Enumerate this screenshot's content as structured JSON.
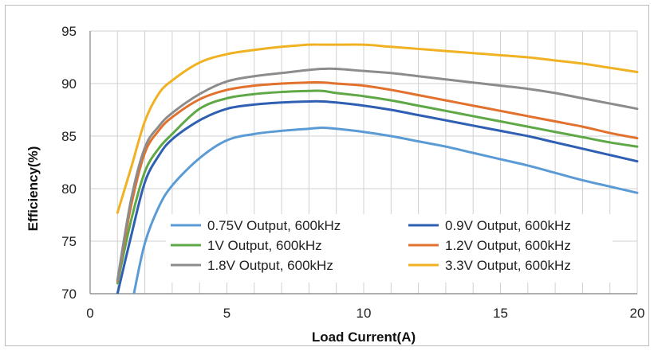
{
  "chart_data": {
    "type": "line",
    "title": "",
    "xlabel": "Load Current(A)",
    "ylabel": "Efficiency(%)",
    "xlim": [
      0,
      20
    ],
    "ylim": [
      70,
      95
    ],
    "x_ticks": [
      0,
      5,
      10,
      15,
      20
    ],
    "y_ticks": [
      70,
      75,
      80,
      85,
      90,
      95
    ],
    "grid": true,
    "legend_position": "inside lower-center",
    "series": [
      {
        "name": "0.75V Output, 600kHz",
        "color": "#5B9BD5",
        "x": [
          1.6,
          2.0,
          2.5,
          3.0,
          4.0,
          5.0,
          6.0,
          7.0,
          8.0,
          8.5,
          9.0,
          10.0,
          11.0,
          12.0,
          13.0,
          14.0,
          15.0,
          16.0,
          17.0,
          18.0,
          19.0,
          20.0
        ],
        "y": [
          70.0,
          74.8,
          78.2,
          80.3,
          82.9,
          84.6,
          85.2,
          85.5,
          85.7,
          85.8,
          85.7,
          85.4,
          85.0,
          84.5,
          84.0,
          83.4,
          82.8,
          82.2,
          81.5,
          80.8,
          80.2,
          79.6
        ]
      },
      {
        "name": "0.9V Output, 600kHz",
        "color": "#2E5FB2",
        "x": [
          1.0,
          1.5,
          2.0,
          2.5,
          3.0,
          4.0,
          5.0,
          6.0,
          7.0,
          8.0,
          8.5,
          9.0,
          10.0,
          11.0,
          12.0,
          13.0,
          14.0,
          15.0,
          16.0,
          17.0,
          18.0,
          19.0,
          20.0
        ],
        "y": [
          70.0,
          75.5,
          80.6,
          83.1,
          84.7,
          86.5,
          87.6,
          88.0,
          88.2,
          88.3,
          88.3,
          88.2,
          87.9,
          87.5,
          87.0,
          86.5,
          86.0,
          85.5,
          85.0,
          84.4,
          83.8,
          83.2,
          82.6
        ]
      },
      {
        "name": "1V Output, 600kHz",
        "color": "#5FA847",
        "x": [
          1.0,
          1.5,
          2.0,
          2.5,
          3.0,
          4.0,
          5.0,
          6.0,
          7.0,
          8.0,
          8.5,
          9.0,
          10.0,
          11.0,
          12.0,
          13.0,
          14.0,
          15.0,
          16.0,
          17.0,
          18.0,
          19.0,
          20.0
        ],
        "y": [
          71.0,
          77.0,
          81.6,
          83.8,
          85.2,
          87.6,
          88.6,
          89.0,
          89.2,
          89.3,
          89.3,
          89.1,
          88.8,
          88.4,
          87.9,
          87.4,
          86.9,
          86.4,
          85.9,
          85.4,
          84.9,
          84.4,
          84.0
        ]
      },
      {
        "name": "1.2V Output, 600kHz",
        "color": "#E1712D",
        "x": [
          1.0,
          1.5,
          2.0,
          2.5,
          3.0,
          4.0,
          5.0,
          6.0,
          7.0,
          8.0,
          8.5,
          9.0,
          10.0,
          11.0,
          12.0,
          13.0,
          14.0,
          15.0,
          16.0,
          17.0,
          18.0,
          19.0,
          20.0
        ],
        "y": [
          71.2,
          78.4,
          83.4,
          85.5,
          86.8,
          88.5,
          89.4,
          89.8,
          90.0,
          90.1,
          90.1,
          90.0,
          89.8,
          89.4,
          88.9,
          88.4,
          87.9,
          87.4,
          86.9,
          86.4,
          85.9,
          85.3,
          84.8
        ]
      },
      {
        "name": "1.8V Output, 600kHz",
        "color": "#8C8C8C",
        "x": [
          1.0,
          1.5,
          2.0,
          2.5,
          3.0,
          4.0,
          5.0,
          6.0,
          7.0,
          8.0,
          8.5,
          9.0,
          10.0,
          11.0,
          12.0,
          13.0,
          14.0,
          15.0,
          16.0,
          17.0,
          18.0,
          19.0,
          20.0
        ],
        "y": [
          71.3,
          79.0,
          83.9,
          85.9,
          87.2,
          89.0,
          90.2,
          90.7,
          91.0,
          91.3,
          91.4,
          91.4,
          91.2,
          91.0,
          90.7,
          90.4,
          90.1,
          89.8,
          89.5,
          89.1,
          88.6,
          88.1,
          87.6
        ]
      },
      {
        "name": "3.3V Output, 600kHz",
        "color": "#F0B122",
        "x": [
          1.0,
          1.5,
          2.0,
          2.5,
          3.0,
          4.0,
          5.0,
          6.0,
          7.0,
          8.0,
          8.5,
          9.0,
          10.0,
          11.0,
          12.0,
          13.0,
          14.0,
          15.0,
          16.0,
          17.0,
          18.0,
          19.0,
          20.0
        ],
        "y": [
          77.7,
          82.0,
          86.4,
          89.0,
          90.3,
          92.0,
          92.8,
          93.2,
          93.5,
          93.7,
          93.7,
          93.7,
          93.7,
          93.5,
          93.3,
          93.1,
          92.9,
          92.7,
          92.5,
          92.2,
          91.9,
          91.5,
          91.1
        ]
      }
    ]
  }
}
